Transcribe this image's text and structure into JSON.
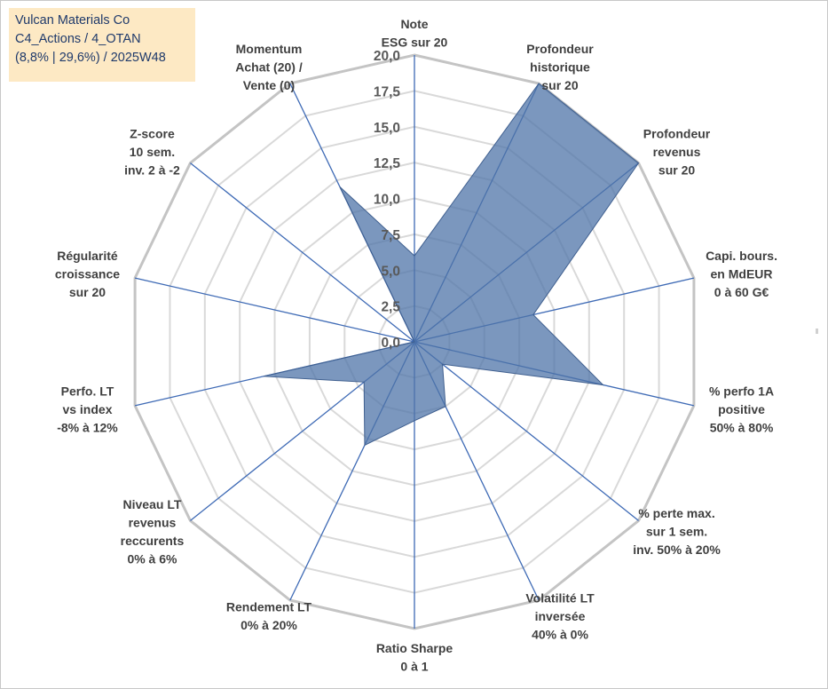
{
  "title_box": {
    "line1": "Vulcan Materials Co",
    "line2": "C4_Actions / 4_OTAN",
    "line3": "(8,8% | 29,6%) / 2025W48"
  },
  "chart_data": {
    "type": "radar",
    "title": "Vulcan Materials Co",
    "rmin": 0,
    "rmax": 20,
    "tick_step": 2.5,
    "tick_labels": [
      "0,0",
      "2,5",
      "5,0",
      "7,5",
      "10,0",
      "12,5",
      "15,0",
      "17,5",
      "20,0"
    ],
    "grid": true,
    "axes": [
      {
        "label": [
          "Note",
          "ESG sur 20"
        ]
      },
      {
        "label": [
          "Profondeur",
          "historique",
          "sur 20"
        ]
      },
      {
        "label": [
          "Profondeur",
          "revenus",
          "sur 20"
        ]
      },
      {
        "label": [
          "Capi. bours.",
          "en MdEUR",
          "0 à 60 G€"
        ]
      },
      {
        "label": [
          "% perfo 1A",
          "positive",
          "50% à 80%"
        ]
      },
      {
        "label": [
          "% perte max.",
          "sur 1 sem.",
          "inv. 50% à 20%"
        ]
      },
      {
        "label": [
          "Volatilité LT",
          "inversée",
          "40% à 0%"
        ]
      },
      {
        "label": [
          "Ratio Sharpe",
          "0 à 1"
        ]
      },
      {
        "label": [
          "Rendement LT",
          "0% à 20%"
        ]
      },
      {
        "label": [
          "Niveau LT",
          "revenus",
          "reccurents",
          "0% à 6%"
        ]
      },
      {
        "label": [
          "Perfo. LT",
          "vs index",
          "-8% à 12%"
        ]
      },
      {
        "label": [
          "Régularité",
          "croissance",
          "sur 20"
        ]
      },
      {
        "label": [
          "Z-score",
          "10 sem.",
          "inv. 2 à -2"
        ]
      },
      {
        "label": [
          "Momentum",
          "Achat (20) /",
          "Vente (0)"
        ]
      }
    ],
    "series": [
      {
        "name": "Vulcan Materials Co",
        "color": "#4f74a8",
        "fill_opacity": 0.75,
        "values": [
          6.0,
          20.0,
          20.0,
          8.5,
          13.5,
          2.5,
          5.0,
          5.5,
          8.0,
          4.5,
          10.8,
          0.0,
          0.0,
          12.0
        ]
      }
    ]
  }
}
